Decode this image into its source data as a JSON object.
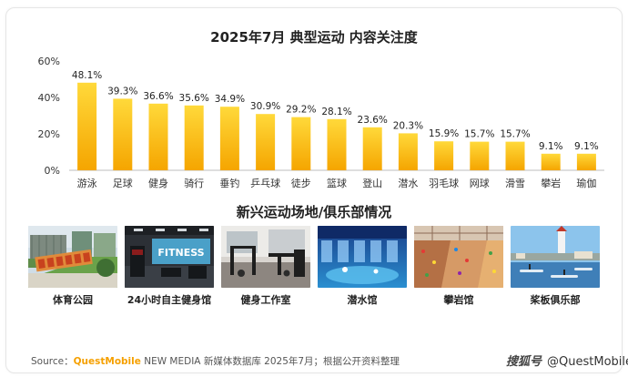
{
  "chart_data": {
    "type": "bar",
    "title": "2025年7月 典型运动 内容关注度",
    "categories": [
      "游泳",
      "足球",
      "健身",
      "骑行",
      "垂钓",
      "乒乓球",
      "徒步",
      "篮球",
      "登山",
      "潜水",
      "羽毛球",
      "网球",
      "滑雪",
      "攀岩",
      "瑜伽"
    ],
    "values": [
      48.1,
      39.3,
      36.6,
      35.6,
      34.9,
      30.9,
      29.2,
      28.1,
      23.6,
      20.3,
      15.9,
      15.7,
      15.7,
      9.1,
      9.1
    ],
    "data_labels": [
      "48.1%",
      "39.3%",
      "36.6%",
      "35.6%",
      "34.9%",
      "30.9%",
      "29.2%",
      "28.1%",
      "23.6%",
      "20.3%",
      "15.9%",
      "15.7%",
      "15.7%",
      "9.1%",
      "9.1%"
    ],
    "yticks": [
      "0%",
      "20%",
      "40%",
      "60%"
    ],
    "ytick_values": [
      0,
      20,
      40,
      60
    ],
    "ylim": [
      0,
      60
    ],
    "bar_color_top": "#ffd93a",
    "bar_color_bottom": "#f5a500",
    "grid": false
  },
  "section": {
    "title": "新兴运动场地/俱乐部情况",
    "items": [
      {
        "caption": "体育公园",
        "icon": "sports-park-photo"
      },
      {
        "caption": "24小时自主健身馆",
        "icon": "gym-photo"
      },
      {
        "caption": "健身工作室",
        "icon": "fitness-studio-photo"
      },
      {
        "caption": "潜水馆",
        "icon": "diving-pool-photo"
      },
      {
        "caption": "攀岩馆",
        "icon": "climbing-gym-photo"
      },
      {
        "caption": "桨板俱乐部",
        "icon": "paddleboard-club-photo"
      }
    ],
    "gym_sign_text": "FITNESS"
  },
  "footer": {
    "source_prefix": "Source：",
    "brand": "QuestMobile",
    "brand_sub": " NEW MEDIA",
    "source_rest": " 新媒体数据库 2025年7月；根据公开资料整理"
  },
  "watermark": {
    "logo_text": "搜狐号",
    "handle": "@QuestMobile"
  }
}
